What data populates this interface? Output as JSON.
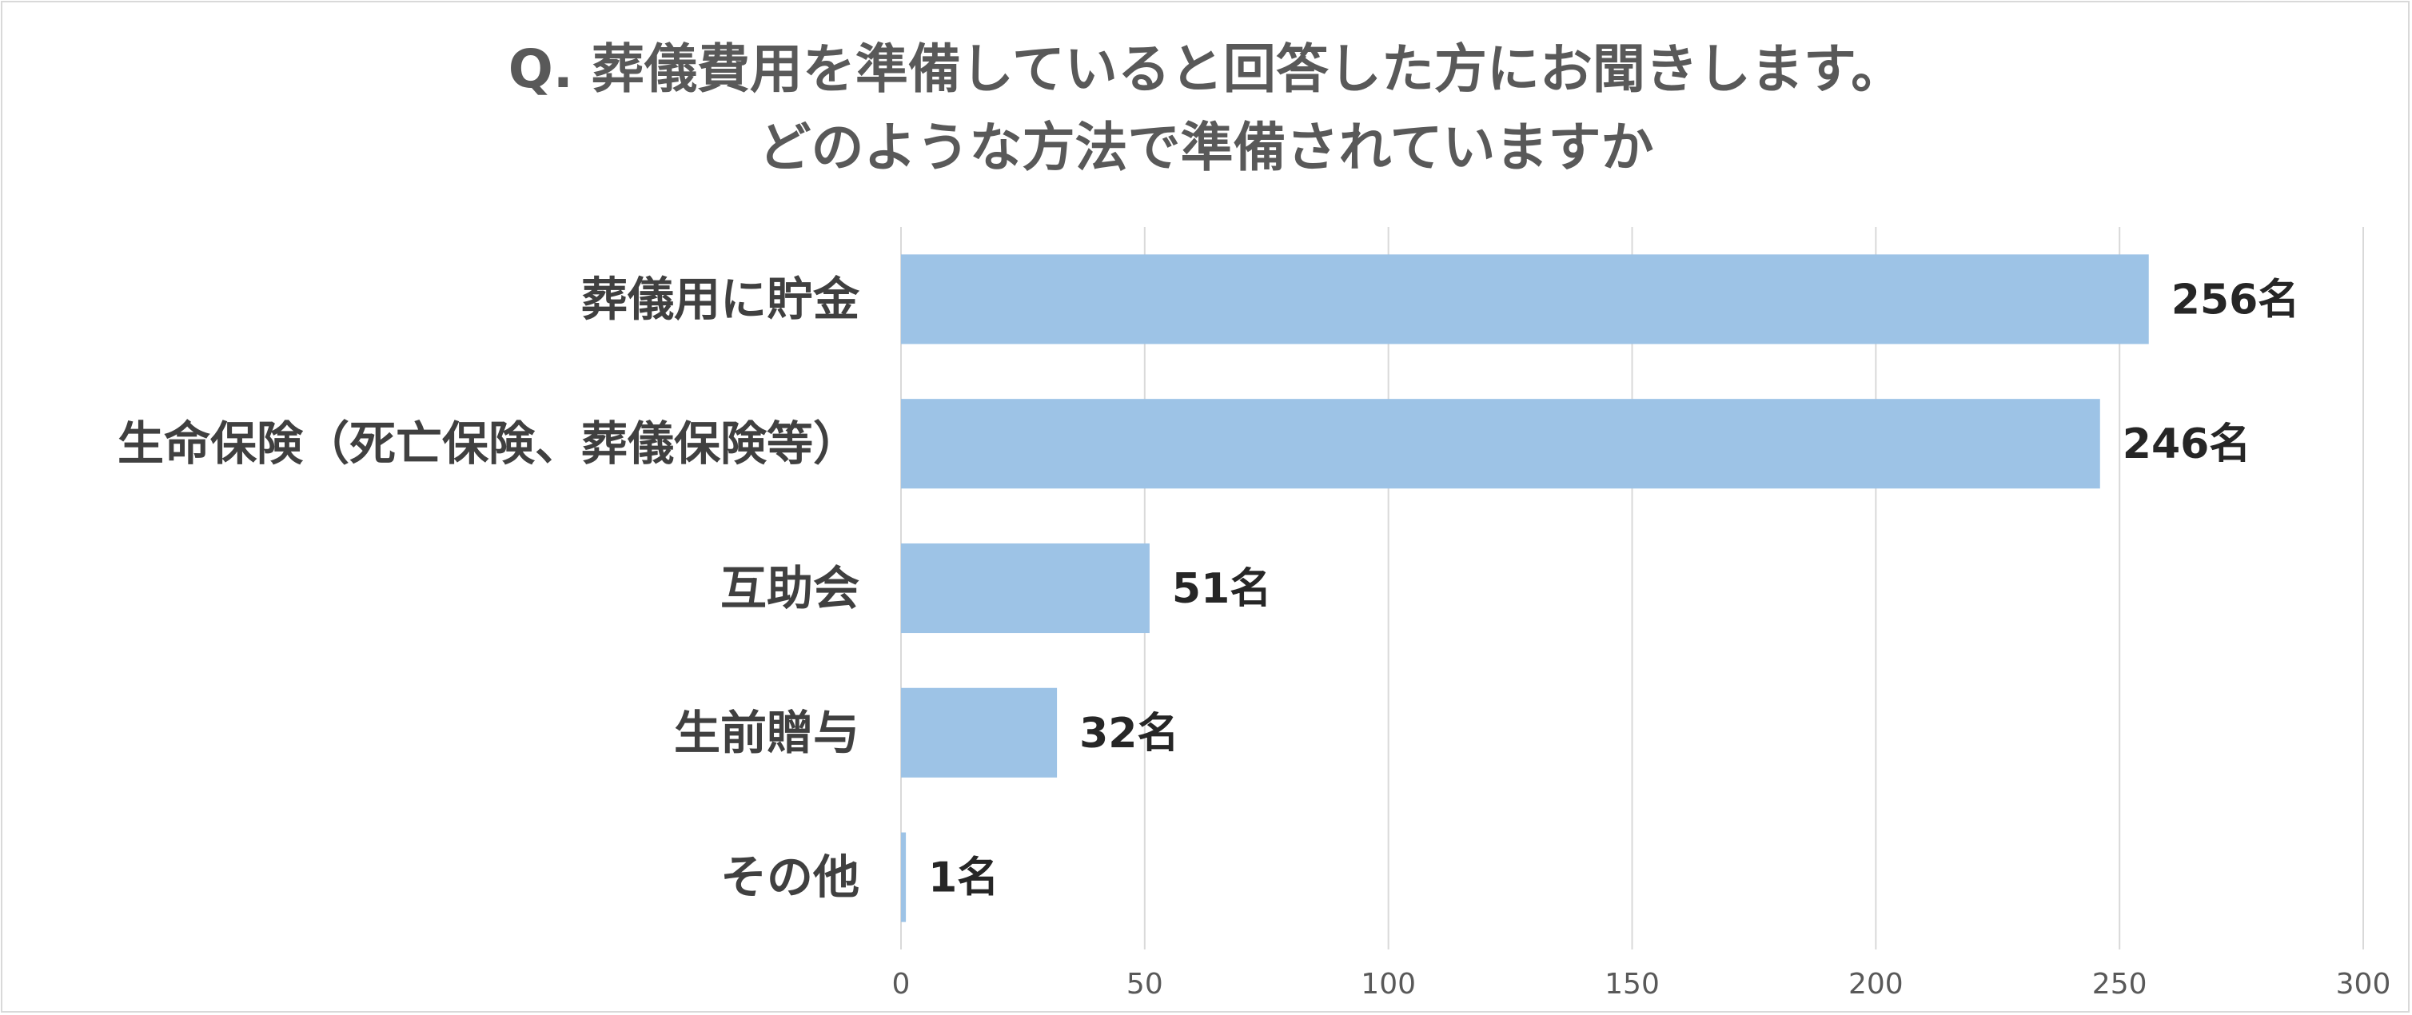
{
  "chart_data": {
    "type": "bar",
    "orientation": "horizontal",
    "title_lines": [
      "Q. 葬儀費用を準備していると回答した方にお聞きします。",
      "どのような方法で準備されていますか"
    ],
    "categories": [
      "葬儀用に貯金",
      "生命保険（死亡保険、葬儀保険等）",
      "互助会",
      "生前贈与",
      "その他"
    ],
    "values": [
      256,
      246,
      51,
      32,
      1
    ],
    "data_labels": [
      "256名",
      "246名",
      "51名",
      "32名",
      "1名"
    ],
    "xlim": [
      0,
      300
    ],
    "xticks": [
      0,
      50,
      100,
      150,
      200,
      250,
      300
    ],
    "xtick_labels": [
      "0",
      "50",
      "100",
      "150",
      "200",
      "250",
      "300"
    ],
    "grid": true,
    "legend": "none",
    "bar_color": "#9dc3e6",
    "grid_color": "#d9d9d9",
    "title_color": "#595959"
  }
}
